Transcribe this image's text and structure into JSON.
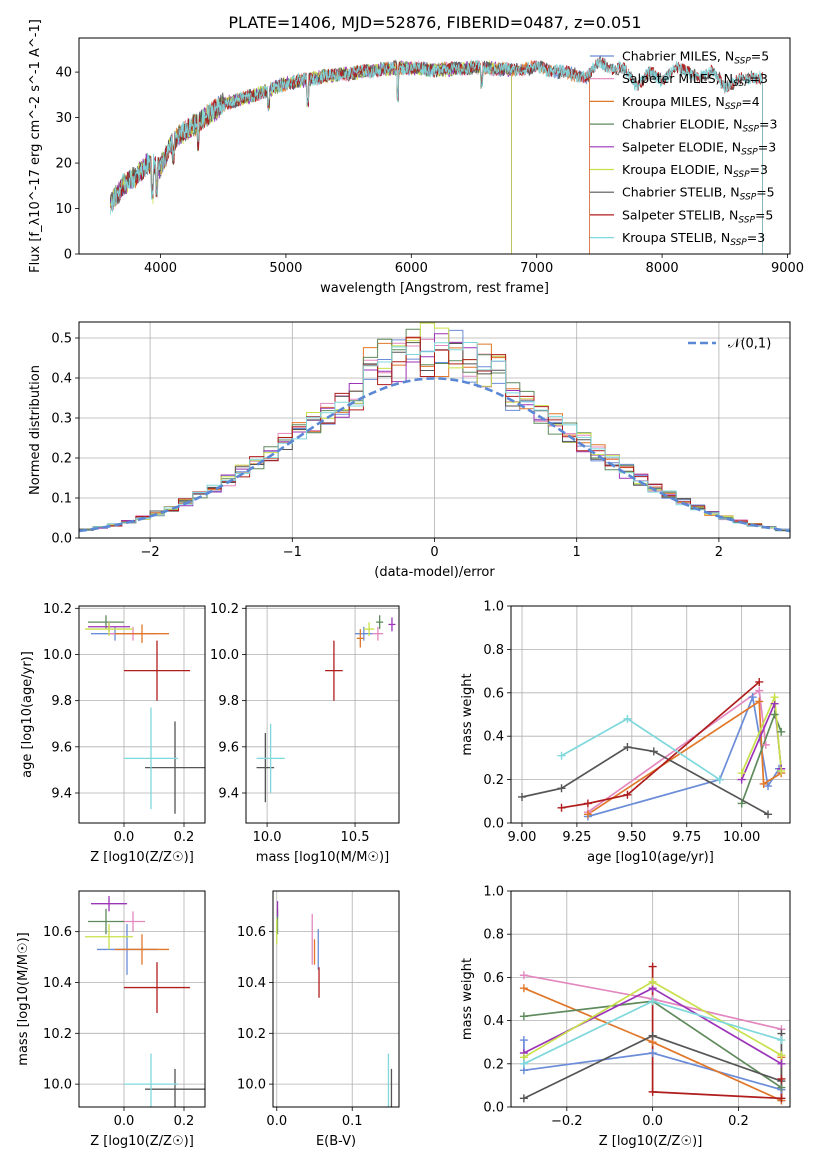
{
  "figure": {
    "title": "PLATE=1406, MJD=52876, FIBERID=0487, z=0.051"
  },
  "chart_data": [
    {
      "id": "spectrum",
      "type": "line",
      "xlabel": "wavelength [Angstrom, rest frame]",
      "ylabel": "Flux [f_λ10^-17 erg cm^-2 s^-1 A^-1]",
      "xlim": [
        3350,
        9020
      ],
      "ylim": [
        0,
        47.5
      ],
      "xticks": [
        4000,
        5000,
        6000,
        7000,
        8000,
        9000
      ],
      "yticks": [
        0,
        10,
        20,
        30,
        40
      ],
      "grid": false,
      "legend_placement": "right",
      "continuum": {
        "x": [
          3600,
          3700,
          3800,
          3900,
          4000,
          4100,
          4200,
          4300,
          4400,
          4500,
          4700,
          5000,
          5300,
          5600,
          5900,
          6200,
          6500,
          6800,
          7000,
          7200,
          7400
        ],
        "y": [
          11,
          15,
          17,
          20,
          19,
          25,
          27,
          29,
          31,
          33,
          34.5,
          37.5,
          39,
          40,
          41,
          40.5,
          41,
          40.5,
          41,
          40,
          39
        ]
      },
      "tail": {
        "x": [
          7400,
          7500,
          7600,
          7700,
          7800,
          7900,
          8000,
          8100,
          8200,
          8300,
          8400,
          8500,
          8600,
          8700
        ],
        "y": [
          40,
          42,
          41,
          40.5,
          37,
          40,
          38,
          41,
          40,
          39,
          40,
          37,
          38,
          39
        ]
      },
      "series": [
        {
          "name": "Chabrier MILES",
          "nssp": 5,
          "color": "#6b8cd8",
          "xmax": 7420
        },
        {
          "name": "Salpeter MILES",
          "nssp": 3,
          "color": "#e387bf",
          "xmax": 7420
        },
        {
          "name": "Kroupa MILES",
          "nssp": 4,
          "color": "#e0772a",
          "xmax": 7420
        },
        {
          "name": "Chabrier ELODIE",
          "nssp": 3,
          "color": "#5e8a5c",
          "xmax": 6800
        },
        {
          "name": "Salpeter ELODIE",
          "nssp": 3,
          "color": "#9b34b8",
          "xmax": 6800
        },
        {
          "name": "Kroupa ELODIE",
          "nssp": 3,
          "color": "#c8e04a",
          "xmax": 6800
        },
        {
          "name": "Chabrier STELIB",
          "nssp": 5,
          "color": "#555555",
          "xmax": 8800
        },
        {
          "name": "Salpeter STELIB",
          "nssp": 5,
          "color": "#b01d1d",
          "xmax": 8800
        },
        {
          "name": "Kroupa STELIB",
          "nssp": 3,
          "color": "#7fd8dc",
          "xmax": 8800
        }
      ]
    },
    {
      "id": "residual_histogram",
      "type": "line",
      "xlabel": "(data-model)/error",
      "ylabel": "Normed distribution",
      "xlim": [
        -2.5,
        2.5
      ],
      "ylim": [
        0,
        0.54
      ],
      "xticks": [
        -2,
        -1,
        0,
        1,
        2
      ],
      "yticks": [
        0.0,
        0.1,
        0.2,
        0.3,
        0.4,
        0.5
      ],
      "grid": true,
      "legend_placement": "top-right",
      "reference_curve": {
        "name": "𝒩(0,1)",
        "mean": 0,
        "sigma": 1,
        "color": "#5b88d4"
      },
      "bin_width": 0.1
    },
    {
      "id": "age_vs_Z",
      "type": "scatter",
      "xlabel": "Z [log10(Z/Z☉)]",
      "ylabel": "age  [log10(age/yr)]",
      "xlim": [
        -0.15,
        0.27
      ],
      "ylim": [
        9.27,
        10.21
      ],
      "xticks": [
        0.0,
        0.2
      ],
      "yticks": [
        9.4,
        9.6,
        9.8,
        10.0,
        10.2
      ],
      "grid": true,
      "points": [
        {
          "color": "#6b8cd8",
          "x": -0.03,
          "y": 10.09,
          "xerr": 0.08,
          "yerr": 0.03
        },
        {
          "color": "#e387bf",
          "x": 0.03,
          "y": 10.09,
          "xerr": 0.08,
          "yerr": 0.03
        },
        {
          "color": "#e0772a",
          "x": 0.06,
          "y": 10.09,
          "xerr": 0.09,
          "yerr": 0.04
        },
        {
          "color": "#5e8a5c",
          "x": -0.06,
          "y": 10.14,
          "xerr": 0.06,
          "yerr": 0.03
        },
        {
          "color": "#9b34b8",
          "x": -0.05,
          "y": 10.12,
          "xerr": 0.07,
          "yerr": 0.02
        },
        {
          "color": "#c8e04a",
          "x": -0.05,
          "y": 10.11,
          "xerr": 0.08,
          "yerr": 0.03
        },
        {
          "color": "#555555",
          "x": 0.17,
          "y": 9.51,
          "xerr": 0.1,
          "yerr": 0.2
        },
        {
          "color": "#b01d1d",
          "x": 0.11,
          "y": 9.93,
          "xerr": 0.11,
          "yerr": 0.13
        },
        {
          "color": "#7fd8dc",
          "x": 0.09,
          "y": 9.55,
          "xerr": 0.09,
          "yerr": 0.22
        }
      ]
    },
    {
      "id": "age_vs_mass",
      "type": "scatter",
      "xlabel": "mass [log10(M/M☉)]",
      "ylabel": "",
      "xlim": [
        9.88,
        10.75
      ],
      "ylim": [
        9.27,
        10.21
      ],
      "xticks": [
        10.0,
        10.5
      ],
      "yticks": [
        9.4,
        9.6,
        9.8,
        10.0,
        10.2
      ],
      "grid": true,
      "points": [
        {
          "color": "#6b8cd8",
          "x": 10.55,
          "y": 10.09,
          "xerr": 0.05,
          "yerr": 0.03
        },
        {
          "color": "#e387bf",
          "x": 10.63,
          "y": 10.09,
          "xerr": 0.03,
          "yerr": 0.03
        },
        {
          "color": "#e0772a",
          "x": 10.53,
          "y": 10.07,
          "xerr": 0.02,
          "yerr": 0.04
        },
        {
          "color": "#5e8a5c",
          "x": 10.64,
          "y": 10.14,
          "xerr": 0.02,
          "yerr": 0.03
        },
        {
          "color": "#9b34b8",
          "x": 10.71,
          "y": 10.13,
          "xerr": 0.02,
          "yerr": 0.03
        },
        {
          "color": "#c8e04a",
          "x": 10.58,
          "y": 10.11,
          "xerr": 0.03,
          "yerr": 0.03
        },
        {
          "color": "#555555",
          "x": 9.99,
          "y": 9.51,
          "xerr": 0.05,
          "yerr": 0.15
        },
        {
          "color": "#b01d1d",
          "x": 10.38,
          "y": 9.93,
          "xerr": 0.05,
          "yerr": 0.13
        },
        {
          "color": "#7fd8dc",
          "x": 10.02,
          "y": 9.55,
          "xerr": 0.08,
          "yerr": 0.15
        }
      ]
    },
    {
      "id": "massweight_vs_age",
      "type": "line",
      "xlabel": "age  [log10(age/yr)]",
      "ylabel": "mass weight",
      "xlim": [
        8.95,
        10.22
      ],
      "ylim": [
        0,
        1
      ],
      "xticks": [
        9.0,
        9.25,
        9.5,
        9.75,
        10.0,
        10.25
      ],
      "xticklabels": [
        "9.00",
        "9.25",
        "9.50",
        "9.75",
        "10.00",
        ""
      ],
      "yticks": [
        0.0,
        0.2,
        0.4,
        0.6,
        0.8,
        1.0
      ],
      "grid": true,
      "series": [
        {
          "name": "Chabrier MILES",
          "color": "#6b8cd8",
          "x": [
            9.3,
            9.9,
            10.05,
            10.12,
            10.17
          ],
          "y": [
            0.03,
            0.2,
            0.58,
            0.17,
            0.25
          ]
        },
        {
          "name": "Salpeter MILES",
          "color": "#e387bf",
          "x": [
            9.3,
            10.08,
            10.11
          ],
          "y": [
            0.05,
            0.61,
            0.36
          ]
        },
        {
          "name": "Kroupa MILES",
          "color": "#e0772a",
          "x": [
            9.3,
            10.08,
            10.1,
            10.18
          ],
          "y": [
            0.04,
            0.56,
            0.18,
            0.23
          ]
        },
        {
          "name": "Chabrier ELODIE",
          "color": "#5e8a5c",
          "x": [
            10.0,
            10.15,
            10.18
          ],
          "y": [
            0.09,
            0.5,
            0.42
          ]
        },
        {
          "name": "Salpeter ELODIE",
          "color": "#9b34b8",
          "x": [
            10.0,
            10.15,
            10.18
          ],
          "y": [
            0.2,
            0.55,
            0.25
          ]
        },
        {
          "name": "Kroupa ELODIE",
          "color": "#c8e04a",
          "x": [
            10.0,
            10.15,
            10.18
          ],
          "y": [
            0.23,
            0.58,
            0.24
          ]
        },
        {
          "name": "Chabrier STELIB",
          "color": "#555555",
          "x": [
            9.0,
            9.18,
            9.48,
            9.6,
            10.12
          ],
          "y": [
            0.12,
            0.16,
            0.35,
            0.33,
            0.04
          ]
        },
        {
          "name": "Salpeter STELIB",
          "color": "#b01d1d",
          "x": [
            9.18,
            9.3,
            9.48,
            10.08
          ],
          "y": [
            0.07,
            0.09,
            0.13,
            0.65
          ]
        },
        {
          "name": "Kroupa STELIB",
          "color": "#7fd8dc",
          "x": [
            9.18,
            9.48,
            9.9
          ],
          "y": [
            0.31,
            0.48,
            0.2
          ]
        }
      ]
    },
    {
      "id": "mass_vs_Z",
      "type": "scatter",
      "xlabel": "Z [log10(Z/Z☉)]",
      "ylabel": "mass [log10(M/M☉)]",
      "xlim": [
        -0.15,
        0.27
      ],
      "ylim": [
        9.91,
        10.76
      ],
      "xticks": [
        0.0,
        0.2
      ],
      "yticks": [
        10.0,
        10.2,
        10.4,
        10.6
      ],
      "grid": true,
      "points": [
        {
          "color": "#6b8cd8",
          "x": 0.01,
          "y": 10.53,
          "xerr": 0.1,
          "yerr": 0.1
        },
        {
          "color": "#e387bf",
          "x": 0.03,
          "y": 10.64,
          "xerr": 0.04,
          "yerr": 0.04
        },
        {
          "color": "#e0772a",
          "x": 0.06,
          "y": 10.53,
          "xerr": 0.09,
          "yerr": 0.06
        },
        {
          "color": "#5e8a5c",
          "x": -0.06,
          "y": 10.64,
          "xerr": 0.06,
          "yerr": 0.05
        },
        {
          "color": "#9b34b8",
          "x": -0.05,
          "y": 10.71,
          "xerr": 0.06,
          "yerr": 0.03
        },
        {
          "color": "#c8e04a",
          "x": -0.05,
          "y": 10.58,
          "xerr": 0.08,
          "yerr": 0.05
        },
        {
          "color": "#555555",
          "x": 0.17,
          "y": 9.98,
          "xerr": 0.1,
          "yerr": 0.08
        },
        {
          "color": "#b01d1d",
          "x": 0.11,
          "y": 10.38,
          "xerr": 0.11,
          "yerr": 0.1
        },
        {
          "color": "#7fd8dc",
          "x": 0.09,
          "y": 10.0,
          "xerr": 0.09,
          "yerr": 0.12
        }
      ]
    },
    {
      "id": "mass_vs_ebv",
      "type": "scatter",
      "xlabel": "E(B-V)",
      "ylabel": "",
      "xlim": [
        -0.005,
        0.162
      ],
      "ylim": [
        9.91,
        10.76
      ],
      "xticks": [
        0.0,
        0.1
      ],
      "yticks": [
        10.0,
        10.2,
        10.4,
        10.6
      ],
      "grid": true,
      "points": [
        {
          "color": "#6b8cd8",
          "x": 0.055,
          "y": 10.53,
          "xerr": 0,
          "yerr": 0.08
        },
        {
          "color": "#e387bf",
          "x": 0.047,
          "y": 10.57,
          "xerr": 0,
          "yerr": 0.1
        },
        {
          "color": "#e0772a",
          "x": 0.05,
          "y": 10.52,
          "xerr": 0,
          "yerr": 0.05
        },
        {
          "color": "#5e8a5c",
          "x": 0.001,
          "y": 10.64,
          "xerr": 0,
          "yerr": 0.05
        },
        {
          "color": "#9b34b8",
          "x": 0.001,
          "y": 10.69,
          "xerr": 0,
          "yerr": 0.03
        },
        {
          "color": "#c8e04a",
          "x": 0.0,
          "y": 10.6,
          "xerr": 0,
          "yerr": 0.05
        },
        {
          "color": "#555555",
          "x": 0.152,
          "y": 9.98,
          "xerr": 0,
          "yerr": 0.08
        },
        {
          "color": "#b01d1d",
          "x": 0.056,
          "y": 10.4,
          "xerr": 0,
          "yerr": 0.06
        },
        {
          "color": "#7fd8dc",
          "x": 0.148,
          "y": 9.99,
          "xerr": 0,
          "yerr": 0.13
        }
      ]
    },
    {
      "id": "massweight_vs_Z",
      "type": "line",
      "xlabel": "Z [log10(Z/Z☉)]",
      "ylabel": "mass weight",
      "xlim": [
        -0.33,
        0.32
      ],
      "ylim": [
        0,
        1
      ],
      "xticks": [
        -0.2,
        0.0,
        0.2
      ],
      "yticks": [
        0.0,
        0.2,
        0.4,
        0.6,
        0.8,
        1.0
      ],
      "grid": true,
      "series": [
        {
          "name": "Chabrier MILES",
          "color": "#6b8cd8",
          "x": [
            -0.3,
            -0.3,
            0.0,
            0.3,
            0.3
          ],
          "y": [
            0.31,
            0.17,
            0.25,
            0.08,
            0.03
          ]
        },
        {
          "name": "Salpeter MILES",
          "color": "#e387bf",
          "x": [
            -0.3,
            0.0,
            0.3
          ],
          "y": [
            0.61,
            0.5,
            0.36
          ]
        },
        {
          "name": "Kroupa MILES",
          "color": "#e0772a",
          "x": [
            -0.3,
            0.0,
            0.3,
            0.3
          ],
          "y": [
            0.55,
            0.3,
            0.03,
            0.23
          ]
        },
        {
          "name": "Chabrier ELODIE",
          "color": "#5e8a5c",
          "x": [
            -0.3,
            0.0,
            0.3
          ],
          "y": [
            0.42,
            0.49,
            0.09
          ]
        },
        {
          "name": "Salpeter ELODIE",
          "color": "#9b34b8",
          "x": [
            -0.3,
            0.0,
            0.3
          ],
          "y": [
            0.25,
            0.55,
            0.2
          ]
        },
        {
          "name": "Kroupa ELODIE",
          "color": "#c8e04a",
          "x": [
            -0.3,
            0.0,
            0.3
          ],
          "y": [
            0.23,
            0.58,
            0.24
          ]
        },
        {
          "name": "Chabrier STELIB",
          "color": "#555555",
          "x": [
            -0.3,
            0.0,
            0.3,
            0.3
          ],
          "y": [
            0.04,
            0.33,
            0.12,
            0.34
          ]
        },
        {
          "name": "Salpeter STELIB",
          "color": "#b01d1d",
          "x": [
            0.0,
            0.0,
            0.3,
            0.3
          ],
          "y": [
            0.65,
            0.07,
            0.04,
            0.13
          ]
        },
        {
          "name": "Kroupa STELIB",
          "color": "#7fd8dc",
          "x": [
            -0.3,
            0.0,
            0.3
          ],
          "y": [
            0.2,
            0.49,
            0.31
          ]
        }
      ]
    }
  ]
}
